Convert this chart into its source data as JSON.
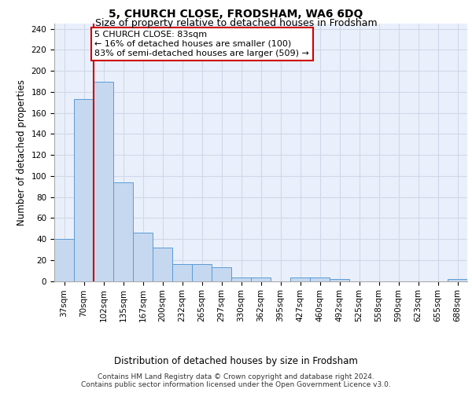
{
  "title": "5, CHURCH CLOSE, FRODSHAM, WA6 6DQ",
  "subtitle": "Size of property relative to detached houses in Frodsham",
  "xlabel": "Distribution of detached houses by size in Frodsham",
  "ylabel": "Number of detached properties",
  "bar_labels": [
    "37sqm",
    "70sqm",
    "102sqm",
    "135sqm",
    "167sqm",
    "200sqm",
    "232sqm",
    "265sqm",
    "297sqm",
    "330sqm",
    "362sqm",
    "395sqm",
    "427sqm",
    "460sqm",
    "492sqm",
    "525sqm",
    "558sqm",
    "590sqm",
    "623sqm",
    "655sqm",
    "688sqm"
  ],
  "bar_values": [
    40,
    173,
    190,
    94,
    46,
    32,
    16,
    16,
    13,
    3,
    3,
    0,
    3,
    3,
    2,
    0,
    0,
    0,
    0,
    0,
    2
  ],
  "bar_color": "#c5d8f0",
  "bar_edge_color": "#5b9bd5",
  "grid_color": "#d0d8e8",
  "background_color": "#eaf0fb",
  "property_line_color": "#cc0000",
  "property_line_x": 1.5,
  "annotation_text": "5 CHURCH CLOSE: 83sqm\n← 16% of detached houses are smaller (100)\n83% of semi-detached houses are larger (509) →",
  "annotation_box_color": "white",
  "annotation_box_edge_color": "#cc0000",
  "ylim": [
    0,
    245
  ],
  "yticks": [
    0,
    20,
    40,
    60,
    80,
    100,
    120,
    140,
    160,
    180,
    200,
    220,
    240
  ],
  "footer_text": "Contains HM Land Registry data © Crown copyright and database right 2024.\nContains public sector information licensed under the Open Government Licence v3.0.",
  "title_fontsize": 10,
  "subtitle_fontsize": 9,
  "axis_label_fontsize": 8.5,
  "tick_fontsize": 7.5,
  "annotation_fontsize": 8,
  "footer_fontsize": 6.5
}
